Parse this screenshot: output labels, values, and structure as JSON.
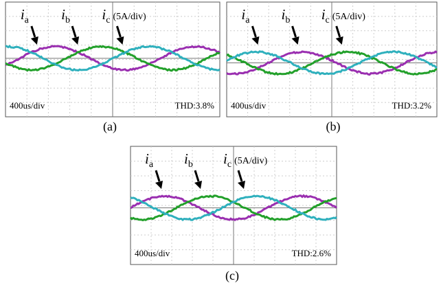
{
  "panels": [
    {
      "caption": "(a)",
      "labels": [
        {
          "symbol": "i",
          "sub": "a"
        },
        {
          "symbol": "i",
          "sub": "b"
        },
        {
          "symbol": "i",
          "sub": "c",
          "note": "(5A/div)"
        }
      ],
      "timebase": "400us/div",
      "thd": "THD:3.8%"
    },
    {
      "caption": "(b)",
      "labels": [
        {
          "symbol": "i",
          "sub": "a"
        },
        {
          "symbol": "i",
          "sub": "b"
        },
        {
          "symbol": "i",
          "sub": "c",
          "note": "(5A/div)"
        }
      ],
      "timebase": "400us/div",
      "thd": "THD:3.2%"
    },
    {
      "caption": "(c)",
      "labels": [
        {
          "symbol": "i",
          "sub": "a"
        },
        {
          "symbol": "i",
          "sub": "b"
        },
        {
          "symbol": "i",
          "sub": "c",
          "note": "(5A/div)"
        }
      ],
      "timebase": "400us/div",
      "thd": "THD:2.6%"
    }
  ]
}
